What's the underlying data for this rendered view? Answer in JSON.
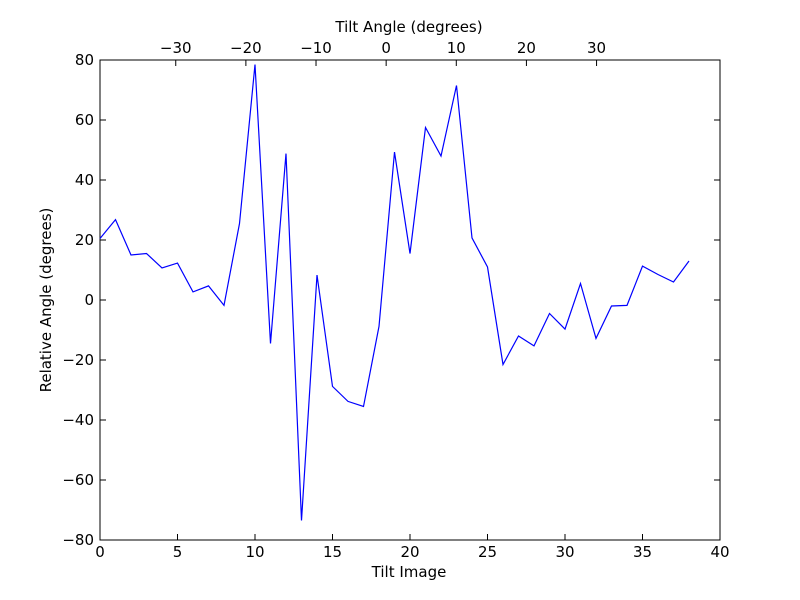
{
  "chart_data": {
    "type": "line",
    "title": "",
    "xlabel": "Tilt Image",
    "ylabel": "Relative Angle (degrees)",
    "top_xlabel": "Tilt Angle (degrees)",
    "xlim": [
      0,
      40
    ],
    "ylim": [
      -80,
      80
    ],
    "top_xlim": [
      -40.8,
      47.6
    ],
    "xticks": [
      0,
      5,
      10,
      15,
      20,
      25,
      30,
      35,
      40
    ],
    "xtick_labels": [
      "0",
      "5",
      "10",
      "15",
      "20",
      "25",
      "30",
      "35",
      "40"
    ],
    "yticks": [
      -80,
      -60,
      -40,
      -20,
      0,
      20,
      40,
      60,
      80
    ],
    "ytick_labels": [
      "−80",
      "−60",
      "−40",
      "−20",
      "0",
      "20",
      "40",
      "60",
      "80"
    ],
    "top_xticks": [
      -30,
      -20,
      -10,
      0,
      10,
      20,
      30
    ],
    "top_xtick_labels": [
      "−30",
      "−20",
      "−10",
      "0",
      "10",
      "20",
      "30"
    ],
    "grid": false,
    "series": [
      {
        "color": "#0000ff",
        "x": [
          0,
          1,
          2,
          3,
          4,
          5,
          6,
          7,
          8,
          9,
          10,
          11,
          12,
          13,
          14,
          15,
          16,
          17,
          18,
          19,
          20,
          21,
          22,
          23,
          24,
          25,
          26,
          27,
          28,
          29,
          30,
          31,
          32,
          33,
          34,
          35,
          36,
          37,
          38
        ],
        "y": [
          20.5,
          26.8,
          15.0,
          15.5,
          10.7,
          12.3,
          2.7,
          4.7,
          -1.8,
          25.5,
          78.5,
          -14.5,
          48.8,
          -73.5,
          8.3,
          -28.8,
          -33.8,
          -35.5,
          -8.8,
          49.3,
          15.5,
          57.5,
          48.0,
          71.5,
          20.7,
          11.0,
          -21.5,
          -12.0,
          -15.3,
          -4.5,
          -9.7,
          5.5,
          -12.8,
          -2.0,
          -1.8,
          11.3,
          8.5,
          6.0,
          13.0
        ]
      }
    ]
  }
}
